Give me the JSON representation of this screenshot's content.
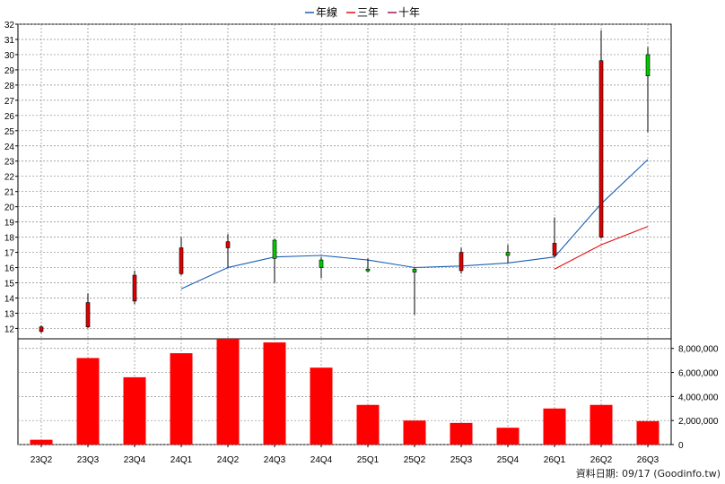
{
  "legend": {
    "items": [
      {
        "label": "年線",
        "color": "#1a5fb4"
      },
      {
        "label": "三年",
        "color": "#e01010"
      },
      {
        "label": "十年",
        "color": "#9b1b5a"
      }
    ]
  },
  "footer": {
    "text": "資料日期: 09/17  (Goodinfo.tw)"
  },
  "colors": {
    "up": "#e00000",
    "down": "#00cc00",
    "volume": "#ff0000",
    "grid": "#888888"
  },
  "chart_data": [
    {
      "type": "candlestick",
      "title": "",
      "categories": [
        "23Q2",
        "23Q3",
        "23Q4",
        "24Q1",
        "24Q2",
        "24Q3",
        "24Q4",
        "25Q1",
        "25Q2",
        "25Q3",
        "25Q4",
        "26Q1",
        "26Q2",
        "26Q3"
      ],
      "ylim": [
        11.2,
        32
      ],
      "yticks": [
        12,
        13,
        14,
        15,
        16,
        17,
        18,
        19,
        20,
        21,
        22,
        23,
        24,
        25,
        26,
        27,
        28,
        29,
        30,
        31,
        32
      ],
      "grid": true,
      "candles": [
        {
          "open": 11.8,
          "high": 12.2,
          "low": 11.7,
          "close": 12.1
        },
        {
          "open": 12.1,
          "high": 14.3,
          "low": 12.0,
          "close": 13.7
        },
        {
          "open": 13.8,
          "high": 15.8,
          "low": 13.6,
          "close": 15.5
        },
        {
          "open": 15.6,
          "high": 18.0,
          "low": 15.5,
          "close": 17.3
        },
        {
          "open": 17.3,
          "high": 18.2,
          "low": 16.0,
          "close": 17.7
        },
        {
          "open": 17.8,
          "high": 17.9,
          "low": 15.0,
          "close": 16.6
        },
        {
          "open": 16.5,
          "high": 16.7,
          "low": 15.3,
          "close": 16.0
        },
        {
          "open": 15.9,
          "high": 16.6,
          "low": 15.7,
          "close": 15.8
        },
        {
          "open": 15.9,
          "high": 16.0,
          "low": 12.9,
          "close": 15.7
        },
        {
          "open": 15.8,
          "high": 17.3,
          "low": 15.6,
          "close": 17.0
        },
        {
          "open": 17.0,
          "high": 17.5,
          "low": 16.3,
          "close": 16.8
        },
        {
          "open": 16.8,
          "high": 19.3,
          "low": 16.7,
          "close": 17.6
        },
        {
          "open": 18.0,
          "high": 31.6,
          "low": 17.9,
          "close": 29.6
        },
        {
          "open": 30.0,
          "high": 30.5,
          "low": 24.9,
          "close": 28.6
        }
      ],
      "series": [
        {
          "name": "年線",
          "color": "#1a5fb4",
          "values": [
            null,
            null,
            null,
            14.6,
            16.0,
            16.7,
            16.8,
            16.5,
            16.0,
            16.1,
            16.3,
            16.7,
            20.2,
            23.1
          ]
        },
        {
          "name": "三年",
          "color": "#e01010",
          "values": [
            null,
            null,
            null,
            null,
            null,
            null,
            null,
            null,
            null,
            null,
            null,
            15.9,
            17.5,
            18.7
          ]
        },
        {
          "name": "十年",
          "color": "#9b1b5a",
          "values": [
            null,
            null,
            null,
            null,
            null,
            null,
            null,
            null,
            null,
            null,
            null,
            null,
            null,
            null
          ]
        }
      ]
    },
    {
      "type": "bar",
      "title": "",
      "categories": [
        "23Q2",
        "23Q3",
        "23Q4",
        "24Q1",
        "24Q2",
        "24Q3",
        "24Q4",
        "25Q1",
        "25Q2",
        "25Q3",
        "25Q4",
        "26Q1",
        "26Q2",
        "26Q3"
      ],
      "values": [
        400000,
        7200000,
        5600000,
        7600000,
        8800000,
        8500000,
        6400000,
        3300000,
        2000000,
        1800000,
        1400000,
        3000000,
        3300000,
        1950000
      ],
      "ylim": [
        0,
        8800000
      ],
      "yticks": [
        0,
        2000000,
        4000000,
        6000000,
        8000000
      ],
      "ytick_labels": [
        "0",
        "2,000,000",
        "4,000,000",
        "6,000,000",
        "8,000,000"
      ],
      "grid": true
    }
  ]
}
